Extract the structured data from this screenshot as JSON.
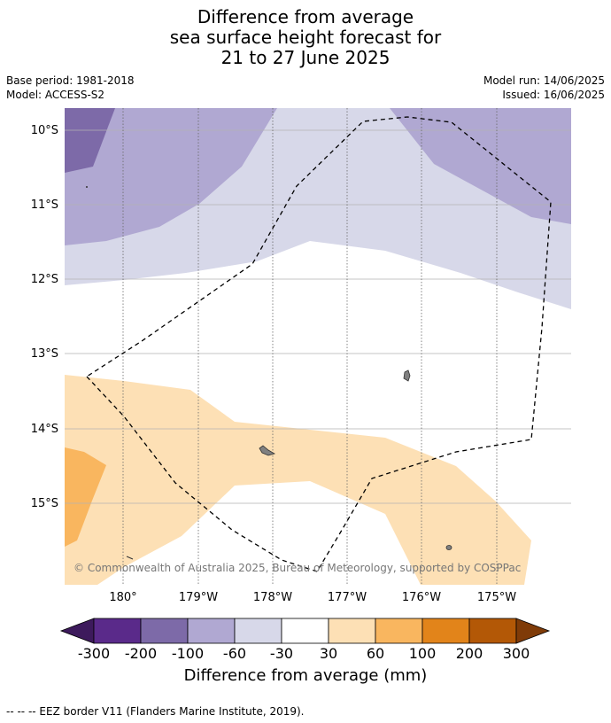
{
  "title": {
    "line1": "Difference from average",
    "line2": "sea surface height forecast for",
    "line3": "21 to 27 June 2025"
  },
  "meta": {
    "base_period": "Base period: 1981-2018",
    "model": "Model: ACCESS-S2",
    "model_run": "Model run: 14/06/2025",
    "issued": "Issued: 16/06/2025"
  },
  "map": {
    "lat_labels": [
      "10°S",
      "11°S",
      "12°S",
      "13°S",
      "14°S",
      "15°S"
    ],
    "lon_labels": [
      "180°",
      "179°W",
      "178°W",
      "177°W",
      "176°W",
      "175°W"
    ],
    "copyright": "© Commonwealth of Australia 2025, Bureau of Meteorology, supported by COSPPac"
  },
  "colorbar": {
    "ticks": [
      "-300",
      "-200",
      "-100",
      "-60",
      "-30",
      "30",
      "60",
      "100",
      "200",
      "300"
    ],
    "colors": [
      "#3d1a5c",
      "#5a2a8a",
      "#7d6aa8",
      "#b0a8d2",
      "#d7d8e9",
      "#ffffff",
      "#fde0b5",
      "#f9b65f",
      "#e2841a",
      "#b35806",
      "#7f3b08"
    ],
    "label": "Difference from average (mm)"
  },
  "eez_note": "--  --  -- EEZ border V11 (Flanders Marine Institute, 2019)."
}
